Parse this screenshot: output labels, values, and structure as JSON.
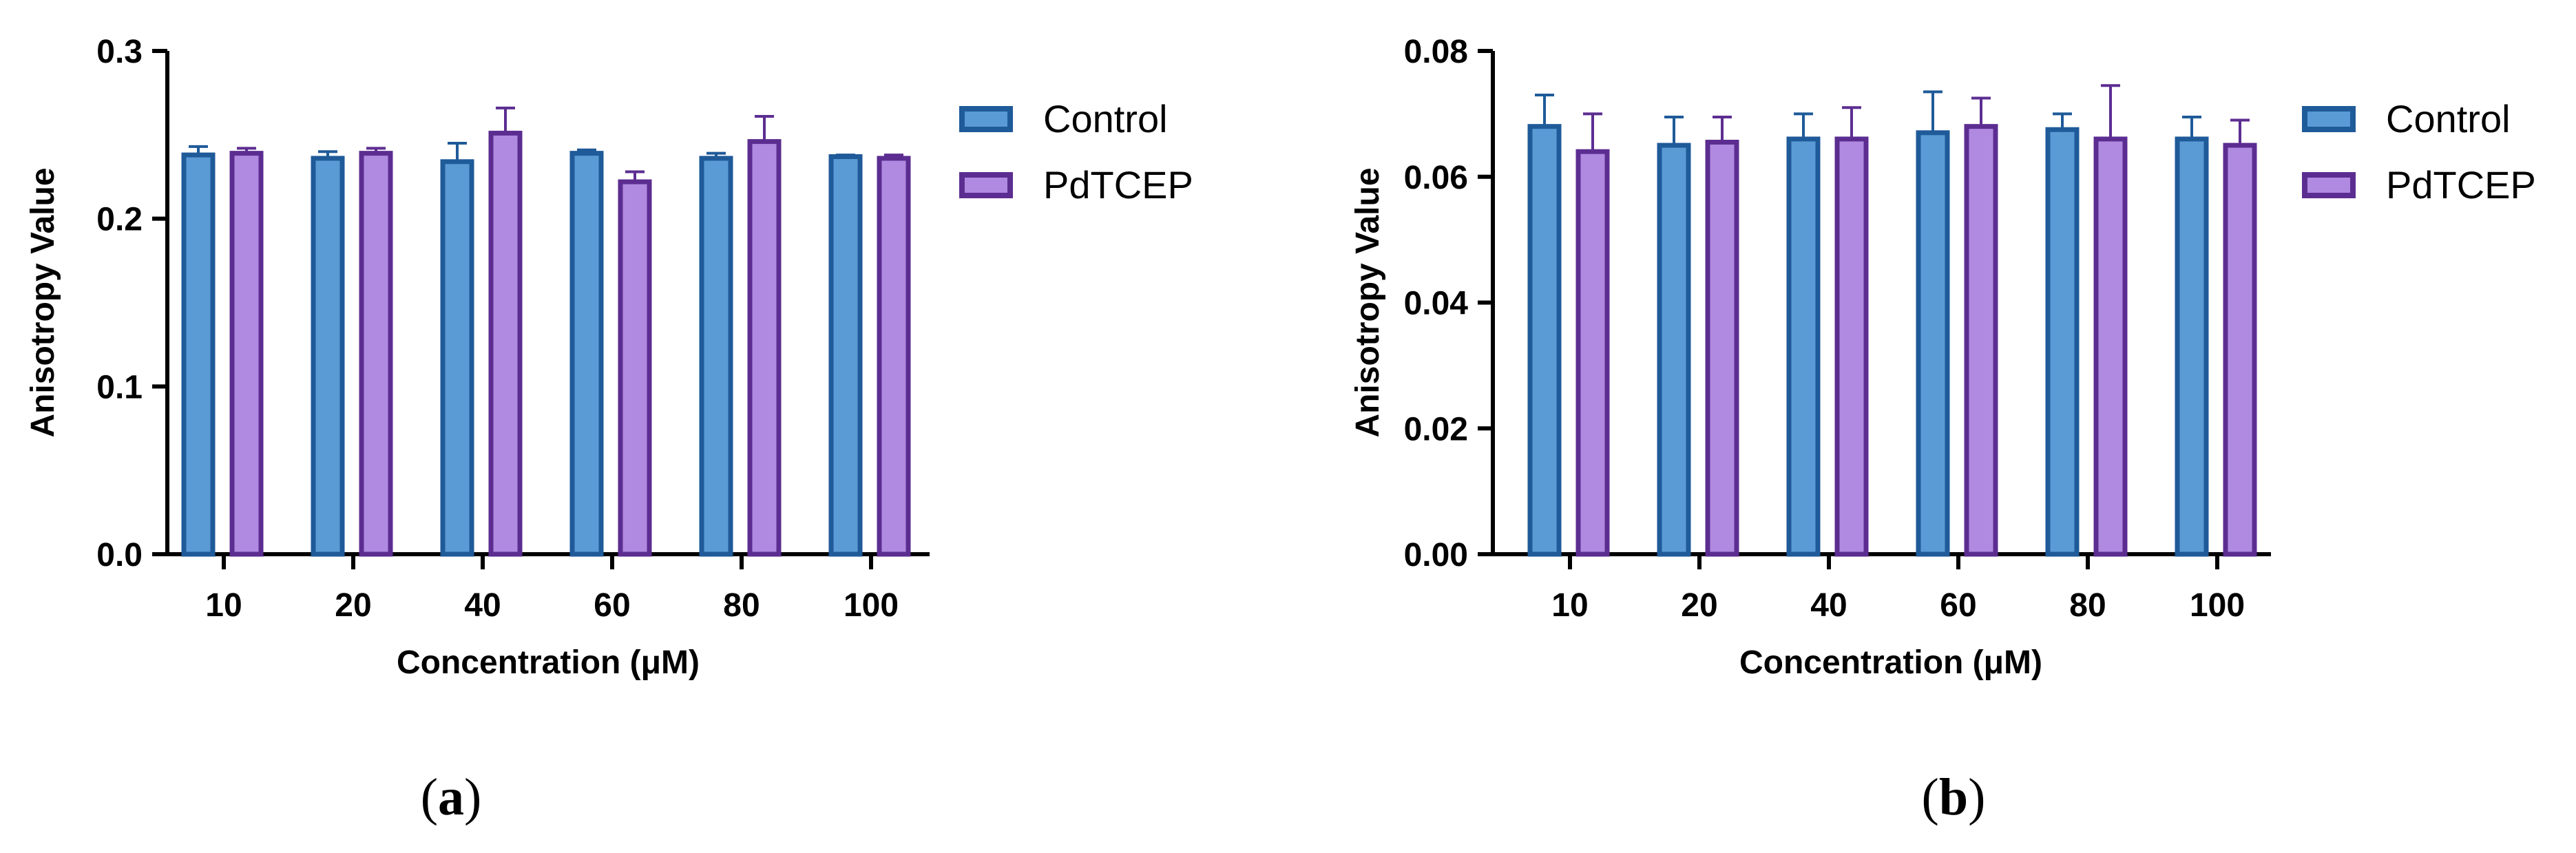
{
  "chart_data": [
    {
      "type": "bar",
      "panel_label": "a",
      "categories": [
        "10",
        "20",
        "40",
        "60",
        "80",
        "100"
      ],
      "xlabel": "Concentration (μM)",
      "ylabel": "Anisotropy Value",
      "ylim": [
        0,
        0.3
      ],
      "yticks": [
        "0.0",
        "0.1",
        "0.2",
        "0.3"
      ],
      "yticks_values": [
        0,
        0.1,
        0.2,
        0.3
      ],
      "legend_position": "top-right-outside",
      "series": [
        {
          "name": "Control",
          "fill": "#5b9bd5",
          "stroke": "#1f5a99",
          "values": [
            0.238,
            0.236,
            0.234,
            0.239,
            0.236,
            0.237
          ],
          "errors": [
            0.005,
            0.004,
            0.011,
            0.002,
            0.003,
            0.001
          ]
        },
        {
          "name": "PdTCEP",
          "fill": "#b08ae0",
          "stroke": "#5c2d91",
          "values": [
            0.239,
            0.239,
            0.251,
            0.222,
            0.246,
            0.236
          ],
          "errors": [
            0.003,
            0.003,
            0.015,
            0.006,
            0.015,
            0.002
          ]
        }
      ]
    },
    {
      "type": "bar",
      "panel_label": "b",
      "categories": [
        "10",
        "20",
        "40",
        "60",
        "80",
        "100"
      ],
      "xlabel": "Concentration (μM)",
      "ylabel": "Anisotropy Value",
      "ylim": [
        0,
        0.08
      ],
      "yticks": [
        "0.00",
        "0.02",
        "0.04",
        "0.06",
        "0.08"
      ],
      "yticks_values": [
        0,
        0.02,
        0.04,
        0.06,
        0.08
      ],
      "legend_position": "top-right-outside",
      "series": [
        {
          "name": "Control",
          "fill": "#5b9bd5",
          "stroke": "#1f5a99",
          "values": [
            0.068,
            0.065,
            0.066,
            0.067,
            0.0675,
            0.066
          ],
          "errors": [
            0.005,
            0.0045,
            0.004,
            0.0065,
            0.0025,
            0.0035
          ]
        },
        {
          "name": "PdTCEP",
          "fill": "#b08ae0",
          "stroke": "#5c2d91",
          "values": [
            0.064,
            0.0655,
            0.066,
            0.068,
            0.066,
            0.065
          ],
          "errors": [
            0.006,
            0.004,
            0.005,
            0.0045,
            0.0085,
            0.004
          ]
        }
      ]
    }
  ]
}
